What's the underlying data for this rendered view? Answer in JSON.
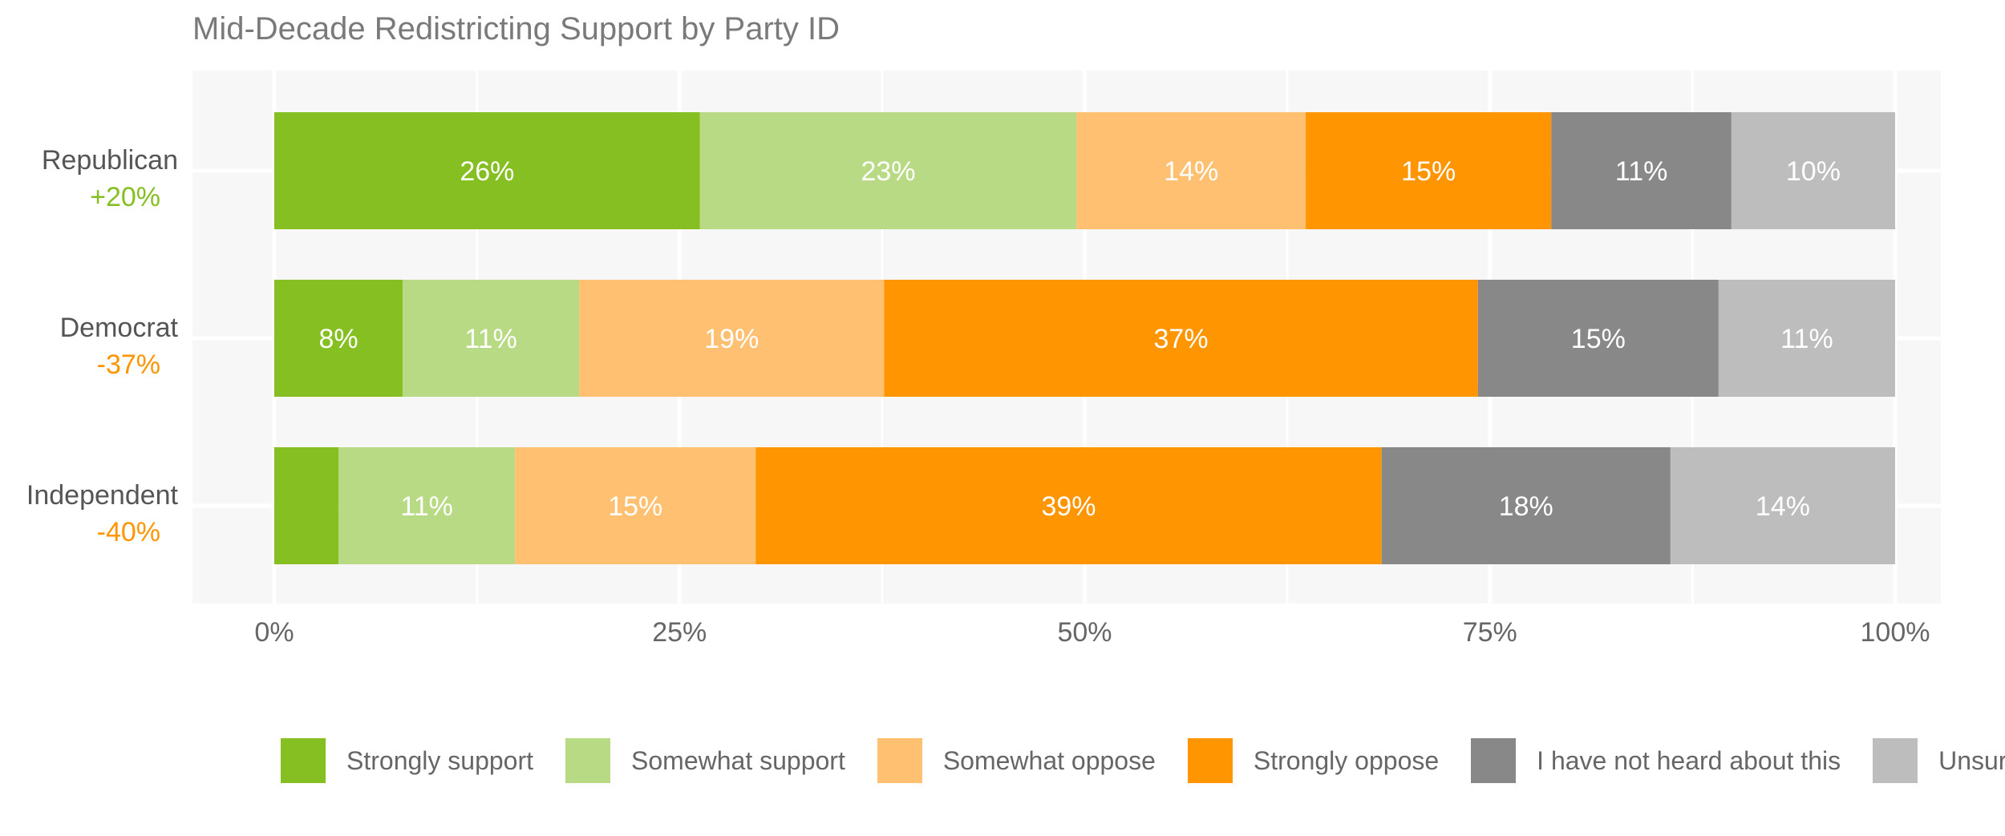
{
  "chart_data": {
    "type": "bar",
    "orientation": "horizontal-stacked",
    "title": "Mid-Decade Redistricting Support by Party ID",
    "xlabel": "",
    "ylabel": "",
    "xlim": [
      0,
      100
    ],
    "x_ticks": [
      "0%",
      "25%",
      "50%",
      "75%",
      "100%"
    ],
    "x_tick_values": [
      0,
      25,
      50,
      75,
      100
    ],
    "grid": true,
    "legend_position": "bottom",
    "categories": [
      "Republican",
      "Democrat",
      "Independent"
    ],
    "net_labels": [
      "+20%",
      "-37%",
      "-40%"
    ],
    "net_colors": [
      "#85bf22",
      "#ff9500",
      "#ff9500"
    ],
    "series": [
      {
        "name": "Strongly support",
        "color": "#85bf22",
        "values": [
          26,
          8,
          4
        ],
        "labels": [
          "26%",
          "8%",
          ""
        ]
      },
      {
        "name": "Somewhat support",
        "color": "#b8da84",
        "values": [
          23,
          11,
          11
        ],
        "labels": [
          "23%",
          "11%",
          "11%"
        ]
      },
      {
        "name": "Somewhat oppose",
        "color": "#ffc171",
        "values": [
          14,
          19,
          15
        ],
        "labels": [
          "14%",
          "19%",
          "15%"
        ]
      },
      {
        "name": "Strongly oppose",
        "color": "#ff9500",
        "values": [
          15,
          37,
          39
        ],
        "labels": [
          "15%",
          "37%",
          "39%"
        ]
      },
      {
        "name": "I have not heard about this",
        "color": "#888888",
        "values": [
          11,
          15,
          18
        ],
        "labels": [
          "11%",
          "15%",
          "18%"
        ]
      },
      {
        "name": "Unsure",
        "color": "#bdbdbd",
        "values": [
          10,
          11,
          14
        ],
        "labels": [
          "10%",
          "11%",
          "14%"
        ]
      }
    ]
  }
}
